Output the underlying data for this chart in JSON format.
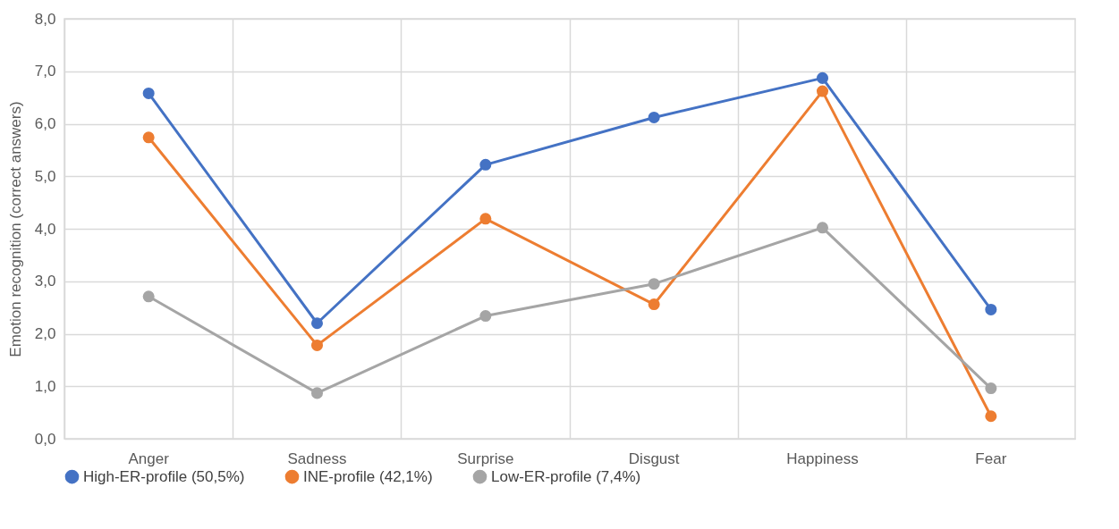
{
  "chart_data": {
    "type": "line",
    "ylabel": "Emotion recognition (correct answers)",
    "categories": [
      "Anger",
      "Sadness",
      "Surprise",
      "Disgust",
      "Happiness",
      "Fear"
    ],
    "series": [
      {
        "name": "High-ER-profile (50,5%)",
        "color": "#4472c4",
        "values": [
          6.58,
          2.2,
          5.22,
          6.12,
          6.87,
          2.46
        ]
      },
      {
        "name": "INE-profile (42,1%)",
        "color": "#ed7d31",
        "values": [
          5.74,
          1.78,
          4.19,
          2.56,
          6.62,
          0.43
        ]
      },
      {
        "name": "Low-ER-profile (7,4%)",
        "color": "#a5a5a5",
        "values": [
          2.71,
          0.87,
          2.34,
          2.95,
          4.02,
          0.96
        ]
      }
    ],
    "ylim": [
      0,
      8
    ],
    "yticks": [
      {
        "value": 0,
        "label": "0,0"
      },
      {
        "value": 1,
        "label": "1,0"
      },
      {
        "value": 2,
        "label": "2,0"
      },
      {
        "value": 3,
        "label": "3,0"
      },
      {
        "value": 4,
        "label": "4,0"
      },
      {
        "value": 5,
        "label": "5,0"
      },
      {
        "value": 6,
        "label": "6,0"
      },
      {
        "value": 7,
        "label": "7,0"
      },
      {
        "value": 8,
        "label": "8,0"
      }
    ],
    "grid": true,
    "legend": "bottom",
    "marker": "circle",
    "line_style": "solid"
  }
}
